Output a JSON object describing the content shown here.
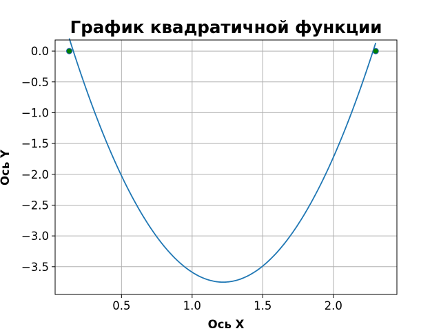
{
  "chart_data": {
    "type": "line",
    "title": "График квадратичной функции",
    "xlabel": "Ось X",
    "ylabel": "Ось Y",
    "xlim": [
      0.03,
      2.45
    ],
    "ylim": [
      -3.95,
      0.18
    ],
    "grid": true,
    "xticks": [
      {
        "value": 0.5,
        "label": "0.5"
      },
      {
        "value": 1.0,
        "label": "1.0"
      },
      {
        "value": 1.5,
        "label": "1.5"
      },
      {
        "value": 2.0,
        "label": "2.0"
      }
    ],
    "yticks": [
      {
        "value": 0.0,
        "label": "0.0"
      },
      {
        "value": -0.5,
        "label": "−0.5"
      },
      {
        "value": -1.0,
        "label": "−1.0"
      },
      {
        "value": -1.5,
        "label": "−1.5"
      },
      {
        "value": -2.0,
        "label": "−2.0"
      },
      {
        "value": -2.5,
        "label": "−2.5"
      },
      {
        "value": -3.0,
        "label": "−3.0"
      },
      {
        "value": -3.5,
        "label": "−3.5"
      }
    ],
    "series": [
      {
        "type": "line",
        "color": "#1f77b4",
        "quadratic": {
          "a": 3.33,
          "vertex_x": 1.22,
          "vertex_y": -3.75
        },
        "x_range": [
          0.13,
          2.3
        ]
      }
    ],
    "points": [
      {
        "x": 0.13,
        "y": 0.0
      },
      {
        "x": 2.3,
        "y": 0.0
      }
    ],
    "point_style": {
      "fill": "#008000",
      "stroke": "#1f5fa8"
    }
  }
}
